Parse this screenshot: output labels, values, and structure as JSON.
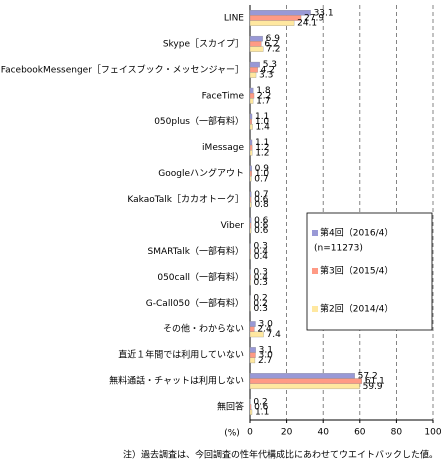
{
  "chart_data": {
    "type": "hbar",
    "categories": [
      "LINE",
      "Skype［スカイプ］",
      "FacebookMessenger［フェイスブック・メッセンジャー］",
      "FaceTime",
      "050plus（一部有料）",
      "iMessage",
      "Googleハングアウト",
      "KakaoTalk［カカオトーク］",
      "Viber",
      "SMARTalk（一部有料）",
      "050call（一部有料）",
      "G-Call050（一部有料）",
      "その他・わからない",
      "直近１年間では利用していない",
      "無料通話・チャットは利用しない",
      "無回答"
    ],
    "series": [
      {
        "name": "第4回（2016/4）",
        "color": "#9999d6",
        "values": [
          33.1,
          6.9,
          5.3,
          1.8,
          1.1,
          1.1,
          0.9,
          0.7,
          0.6,
          0.3,
          0.3,
          0.2,
          3.0,
          3.1,
          57.2,
          0.2
        ],
        "value_labels": [
          "33.1",
          "6.9",
          "5.3",
          "1.8",
          "1.1",
          "1.1",
          "0.9",
          "0.7",
          "0.6",
          "0.3",
          "0.3",
          "0.2",
          "3.0",
          "3.1",
          "57.2",
          "0.2"
        ]
      },
      {
        "name": "第3回（2015/4）",
        "color": "#ff9a85",
        "values": [
          27.9,
          6.2,
          4.2,
          2.2,
          1.0,
          1.2,
          1.0,
          0.6,
          0.6,
          0.4,
          0.4,
          0.2,
          2.4,
          3.0,
          61.1,
          0.6
        ],
        "value_labels": [
          "27.9",
          "6.2",
          "4.2",
          "2.2",
          "1.0",
          "1.2",
          "1.0",
          "0.6",
          "0.6",
          "0.4",
          "0.4",
          "0.2",
          "2.4",
          "3.0",
          "61.1",
          "0.6"
        ]
      },
      {
        "name": "第2回（2014/4）",
        "color": "#ffe8a0",
        "values": [
          24.1,
          7.2,
          3.3,
          1.7,
          1.4,
          1.2,
          0.7,
          0.8,
          0.6,
          0.4,
          0.3,
          0.3,
          7.4,
          2.7,
          59.9,
          1.1
        ],
        "value_labels": [
          "24.1",
          "7.2",
          "3.3",
          "1.7",
          "1.4",
          "1.2",
          "0.7",
          "0.8",
          "0.6",
          "0.4",
          "0.3",
          "0.3",
          "7.4",
          "2.7",
          "59.9",
          "1.1"
        ]
      }
    ],
    "legend_note": "(n=11273)",
    "xlabel": "(%)",
    "xlim": [
      0,
      100
    ],
    "xticks": [
      0,
      20,
      40,
      60,
      80,
      100
    ],
    "grid": true,
    "note": "注）過去調査は、今回調査の性年代構成比にあわせてウエイトバックした値。"
  }
}
